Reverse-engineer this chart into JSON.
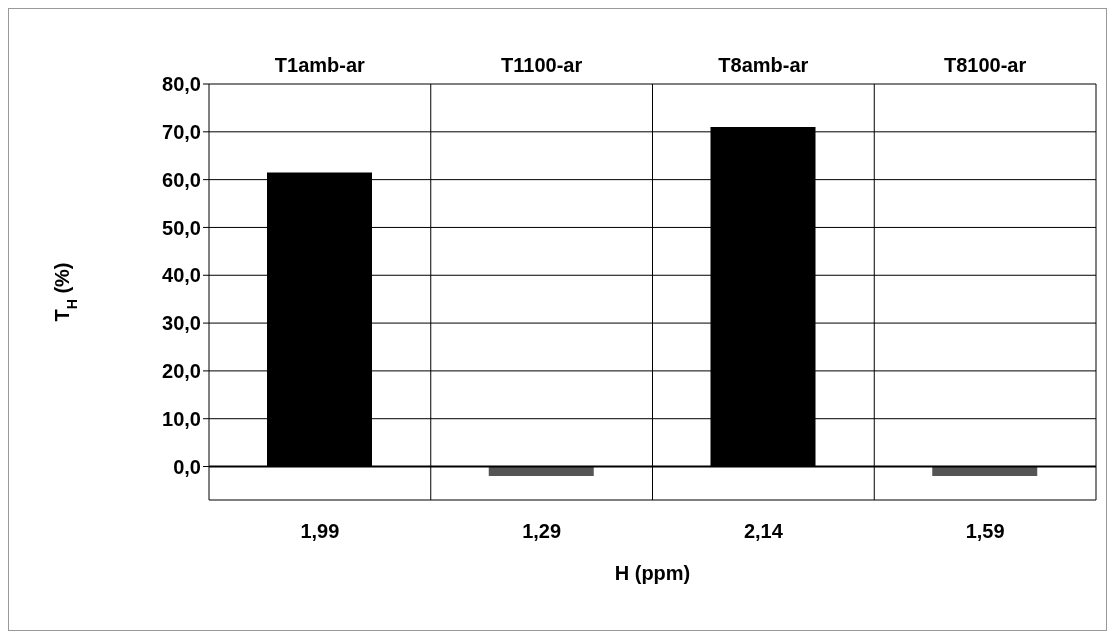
{
  "chart_data": {
    "type": "bar",
    "xlabel": "H (ppm)",
    "ylabel": "T$_{H}$ (%)",
    "categories": [
      "1,99",
      "1,29",
      "2,14",
      "1,59"
    ],
    "values": [
      61.5,
      -2,
      71,
      -2
    ],
    "colors": [
      "#000000",
      "#555555",
      "#000000",
      "#555555"
    ],
    "ylim": [
      -7,
      80
    ],
    "yticks": [
      {
        "value": 0,
        "label": "0,0"
      },
      {
        "value": 10,
        "label": "10,0"
      },
      {
        "value": 20,
        "label": "20,0"
      },
      {
        "value": 30,
        "label": "30,0"
      },
      {
        "value": 40,
        "label": "40,0"
      },
      {
        "value": 50,
        "label": "50,0"
      },
      {
        "value": 60,
        "label": "60,0"
      },
      {
        "value": 70,
        "label": "70,0"
      },
      {
        "value": 80,
        "label": "80,0"
      }
    ],
    "ref_lines": [
      {
        "axis": "y",
        "value": 0,
        "color": "#000000"
      }
    ],
    "annotations": [
      "T1amb-ar",
      "T1100-ar",
      "T8amb-ar",
      "T8100-ar"
    ],
    "grid": true
  }
}
